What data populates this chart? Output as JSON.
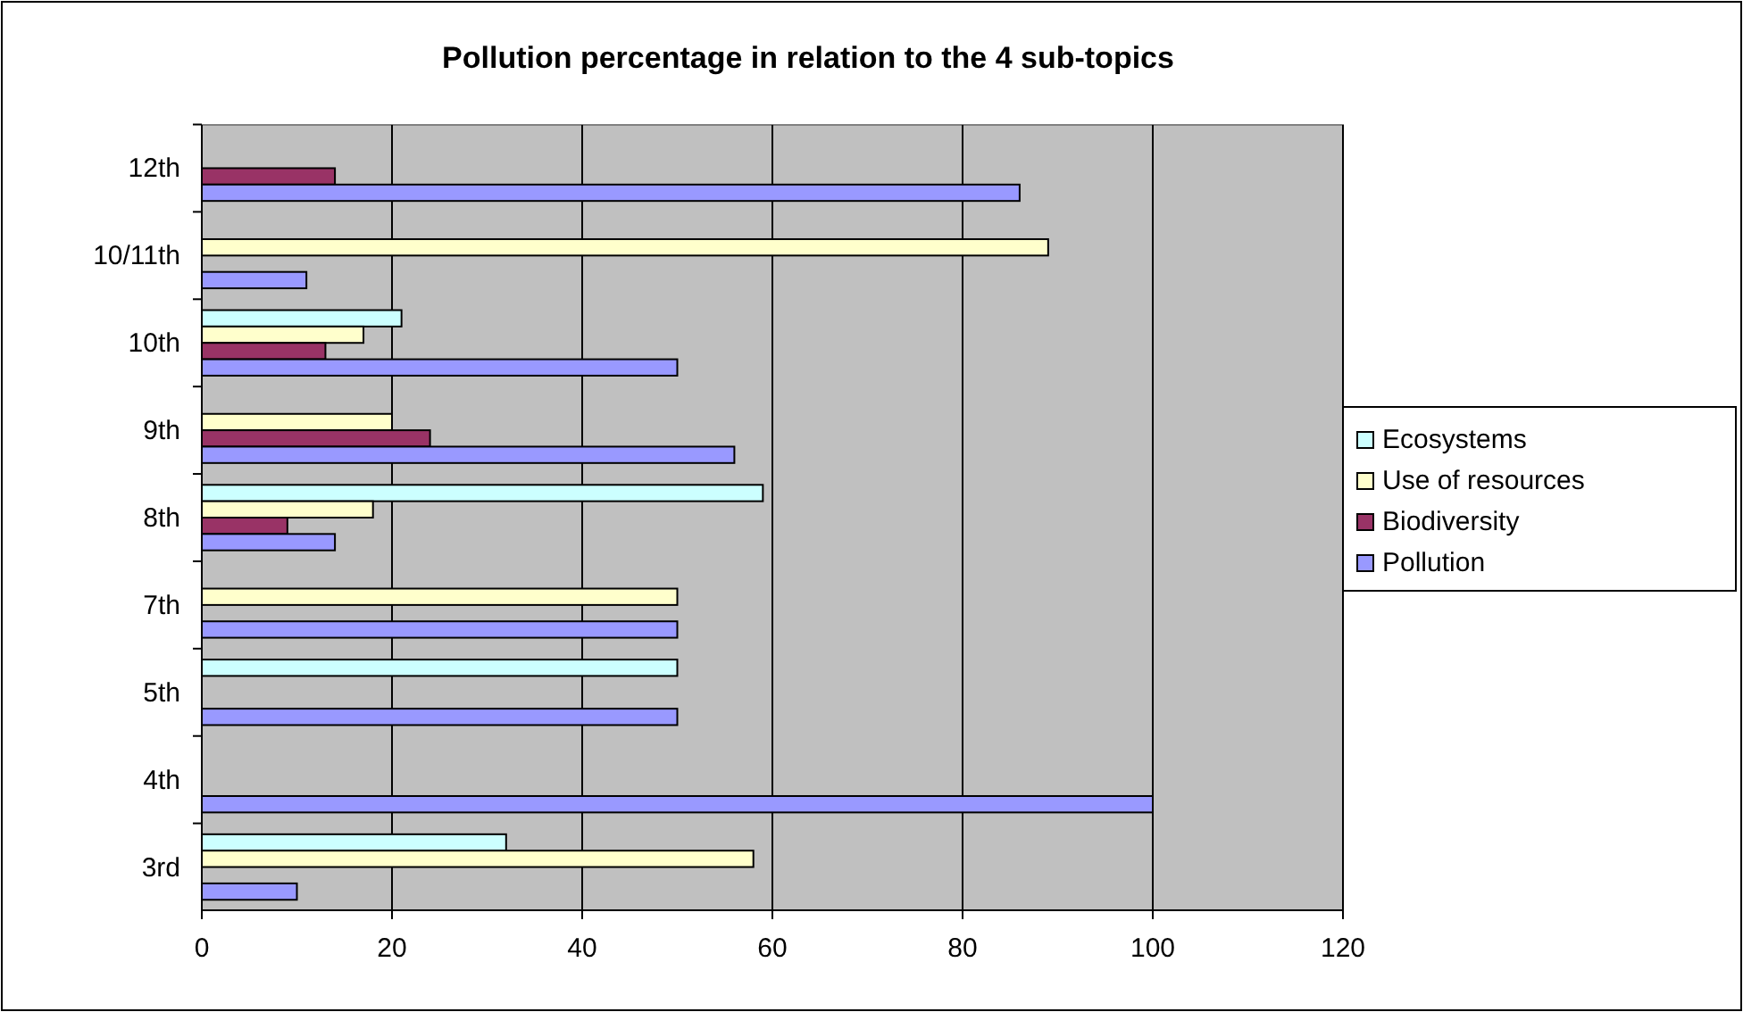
{
  "chart_data": {
    "type": "bar",
    "orientation": "horizontal",
    "title": "Pollution percentage in relation to the 4 sub-topics",
    "categories": [
      "12th",
      "10/11th",
      "10th",
      "9th",
      "8th",
      "7th",
      "5th",
      "4th",
      "3rd"
    ],
    "series": [
      {
        "name": "Ecosystems",
        "color": "#ccffff",
        "values": [
          null,
          null,
          21,
          null,
          59,
          null,
          50,
          null,
          32
        ]
      },
      {
        "name": "Use of resources",
        "color": "#ffffcc",
        "values": [
          null,
          89,
          17,
          20,
          18,
          50,
          null,
          null,
          58
        ]
      },
      {
        "name": "Biodiversity",
        "color": "#993366",
        "values": [
          14,
          null,
          13,
          24,
          9,
          null,
          null,
          null,
          null
        ]
      },
      {
        "name": "Pollution",
        "color": "#9999ff",
        "values": [
          86,
          11,
          50,
          56,
          14,
          50,
          50,
          100,
          10
        ]
      }
    ],
    "xlim": [
      0,
      120
    ],
    "xticks": [
      0,
      20,
      40,
      60,
      80,
      100,
      120
    ],
    "grid": "x",
    "legend": "right"
  }
}
